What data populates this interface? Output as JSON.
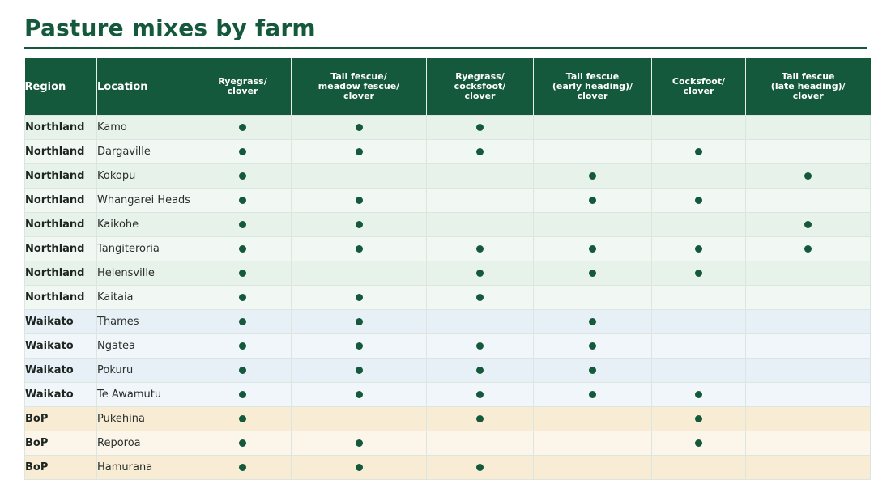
{
  "title": "Pasture mixes by farm",
  "colors": {
    "header_bg": "#14593b",
    "dot": "#14593b",
    "northland_rows": [
      "#e7f2ea",
      "#f1f7f2"
    ],
    "waikato_rows": [
      "#e6f0f6",
      "#f1f6fa"
    ],
    "bop_rows": [
      "#f8ecd4",
      "#fcf5e9"
    ]
  },
  "table": {
    "region_header": "Region",
    "location_header": "Location",
    "mix_headers": [
      "Ryegrass/\nclover",
      "Tall fescue/\nmeadow fescue/\nclover",
      "Ryegrass/\ncocksfoot/\nclover",
      "Tall fescue\n(early heading)/\nclover",
      "Cocksfoot/\nclover",
      "Tall fescue\n(late heading)/\nclover"
    ],
    "rows": [
      {
        "region": "Northland",
        "location": "Kamo",
        "marks": [
          true,
          true,
          true,
          false,
          false,
          false
        ]
      },
      {
        "region": "Northland",
        "location": "Dargaville",
        "marks": [
          true,
          true,
          true,
          false,
          true,
          false
        ]
      },
      {
        "region": "Northland",
        "location": "Kokopu",
        "marks": [
          true,
          false,
          false,
          true,
          false,
          true
        ]
      },
      {
        "region": "Northland",
        "location": "Whangarei Heads",
        "marks": [
          true,
          true,
          false,
          true,
          true,
          false
        ]
      },
      {
        "region": "Northland",
        "location": "Kaikohe",
        "marks": [
          true,
          true,
          false,
          false,
          false,
          true
        ]
      },
      {
        "region": "Northland",
        "location": "Tangiteroria",
        "marks": [
          true,
          true,
          true,
          true,
          true,
          true
        ]
      },
      {
        "region": "Northland",
        "location": "Helensville",
        "marks": [
          true,
          false,
          true,
          true,
          true,
          false
        ]
      },
      {
        "region": "Northland",
        "location": "Kaitaia",
        "marks": [
          true,
          true,
          true,
          false,
          false,
          false
        ]
      },
      {
        "region": "Waikato",
        "location": "Thames",
        "marks": [
          true,
          true,
          false,
          true,
          false,
          false
        ]
      },
      {
        "region": "Waikato",
        "location": "Ngatea",
        "marks": [
          true,
          true,
          true,
          true,
          false,
          false
        ]
      },
      {
        "region": "Waikato",
        "location": "Pokuru",
        "marks": [
          true,
          true,
          true,
          true,
          false,
          false
        ]
      },
      {
        "region": "Waikato",
        "location": "Te Awamutu",
        "marks": [
          true,
          true,
          true,
          true,
          true,
          false
        ]
      },
      {
        "region": "BoP",
        "location": "Pukehina",
        "marks": [
          true,
          false,
          true,
          false,
          true,
          false
        ]
      },
      {
        "region": "BoP",
        "location": "Reporoa",
        "marks": [
          true,
          true,
          false,
          false,
          true,
          false
        ]
      },
      {
        "region": "BoP",
        "location": "Hamurana",
        "marks": [
          true,
          true,
          true,
          false,
          false,
          false
        ]
      }
    ]
  }
}
